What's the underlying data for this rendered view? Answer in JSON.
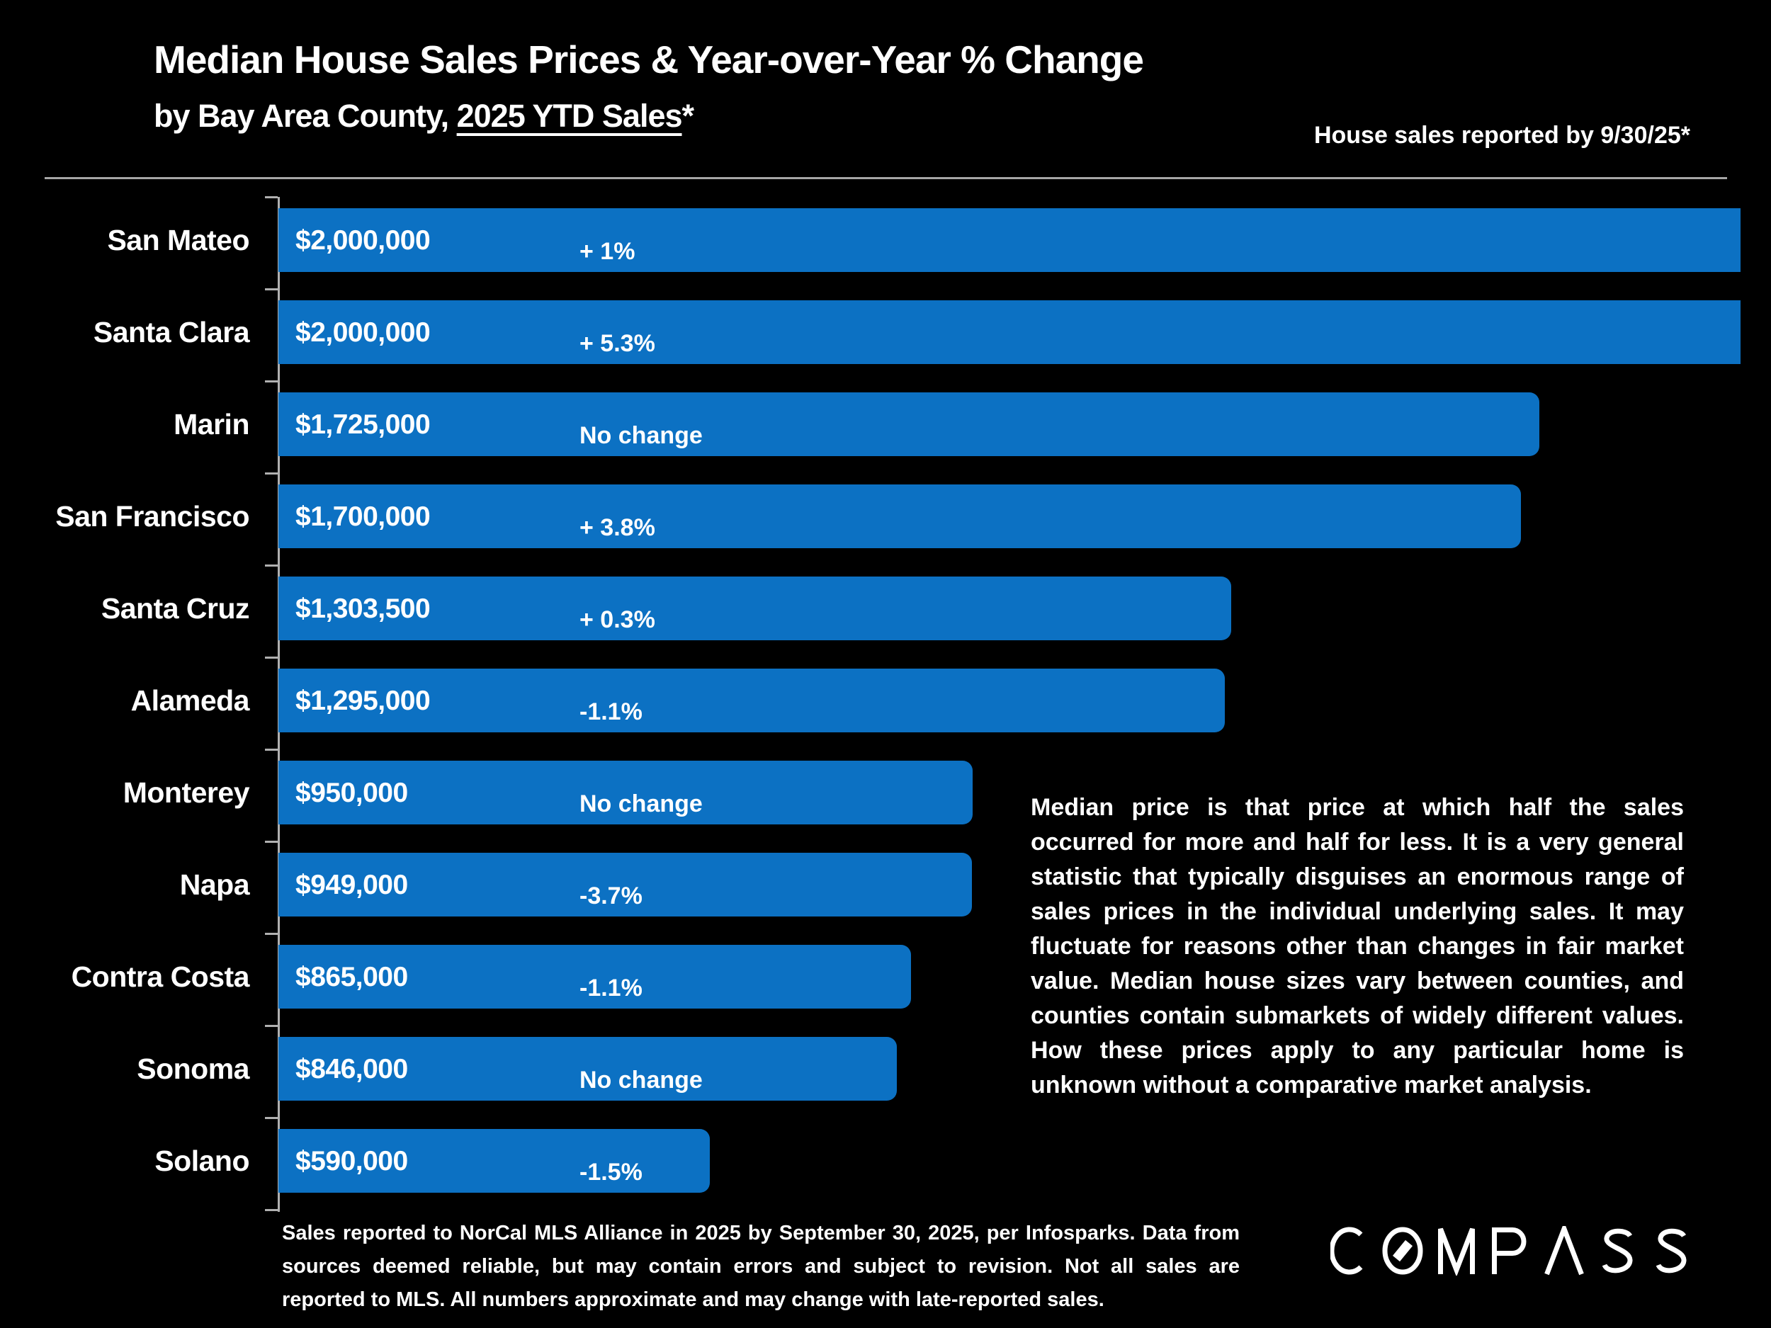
{
  "header": {
    "title": "Median House Sales Prices & Year-over-Year % Change",
    "subtitle_prefix": "by Bay Area County, ",
    "subtitle_underlined": "2025 YTD Sales",
    "subtitle_suffix": "*",
    "reported_note": "House sales reported by 9/30/25*"
  },
  "chart_data": {
    "type": "bar",
    "orientation": "horizontal",
    "title": "Median House Sales Prices & Year-over-Year % Change by Bay Area County, 2025 YTD Sales*",
    "categories": [
      "San Mateo",
      "Santa Clara",
      "Marin",
      "San Francisco",
      "Santa Cruz",
      "Alameda",
      "Monterey",
      "Napa",
      "Contra Costa",
      "Sonoma",
      "Solano"
    ],
    "values": [
      2000000,
      2000000,
      1725000,
      1700000,
      1303500,
      1295000,
      950000,
      949000,
      865000,
      846000,
      590000
    ],
    "price_labels": [
      "$2,000,000",
      "$2,000,000",
      "$1,725,000",
      "$1,700,000",
      "$1,303,500",
      "$1,295,000",
      "$950,000",
      "$949,000",
      "$865,000",
      "$846,000",
      "$590,000"
    ],
    "change_labels": [
      "+ 1%",
      "+ 5.3%",
      "No change",
      "+ 3.8%",
      "+ 0.3%",
      "-1.1%",
      "No change",
      "-3.7%",
      "-1.1%",
      "No change",
      "-1.5%"
    ],
    "xlabel": "",
    "ylabel": "",
    "xlim": [
      0,
      2000000
    ],
    "grid": false,
    "legend": false,
    "bar_color": "#0c71c3",
    "axis_color": "#b0b0b0"
  },
  "annotation": {
    "text": "Median price is that price at which half the sales occurred for more and half for less. It is a very general statistic that typically disguises an enormous range of sales prices in the individual underlying sales. It may fluctuate for reasons other than changes in fair market value. Median house sizes vary between counties, and counties contain submarkets of widely different values. How these prices apply to any particular home is unknown without a comparative market analysis."
  },
  "footnote": {
    "text": "Sales reported to NorCal MLS Alliance in 2025 by September 30, 2025, per Infosparks. Data from sources deemed reliable, but may contain errors and subject to revision. Not all sales are reported to MLS. All numbers approximate and may change with late-reported sales."
  },
  "logo": {
    "name": "COMPASS"
  }
}
